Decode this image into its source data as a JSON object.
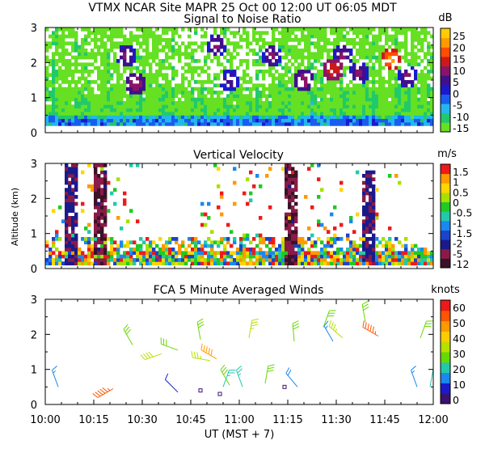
{
  "header": {
    "title": "VTMX  NCAR Site  MAPR 25 Oct 00  12:00 UT  06:05  MDT"
  },
  "colors": {
    "snr": [
      "#66e022",
      "#22c96a",
      "#22b8ee",
      "#1a5cf0",
      "#1a1acc",
      "#40108c",
      "#8a1468",
      "#cc1a1a",
      "#ff4d00",
      "#ff9900",
      "#ffcc00"
    ],
    "vv": [
      "#3a1228",
      "#8a1a48",
      "#1a1a8c",
      "#1a44cc",
      "#1a88ee",
      "#22c9aa",
      "#22c922",
      "#a8e000",
      "#ffd500",
      "#ff9900",
      "#ee1a1a"
    ],
    "wind": [
      "#3a1270",
      "#1a1acc",
      "#1a88ee",
      "#22c9aa",
      "#66d900",
      "#b8e000",
      "#ffcc00",
      "#ff9900",
      "#ff5500",
      "#ee1a1a"
    ]
  },
  "chart_data": [
    {
      "type": "heatmap",
      "title": "Signal to Noise Ratio",
      "xlabel": "",
      "ylabel": "",
      "xlim": [
        0,
        120
      ],
      "ylim": [
        0,
        3
      ],
      "yticks": [
        "0",
        "1",
        "2",
        "3"
      ],
      "colorbar_unit": "dB",
      "colorbar_labels": [
        "25",
        "20",
        "15",
        "10",
        "5",
        "0",
        "-5",
        "-10",
        "-15"
      ],
      "description_values": {
        "low_level_band_km": [
          0.25,
          0.45
        ],
        "enhanced_cells": [
          {
            "t": 25,
            "z": 2.2,
            "db": 10
          },
          {
            "t": 28,
            "z": 1.4,
            "db": 12
          },
          {
            "t": 53,
            "z": 2.5,
            "db": 10
          },
          {
            "t": 57,
            "z": 1.5,
            "db": 8
          },
          {
            "t": 70,
            "z": 2.2,
            "db": 10
          },
          {
            "t": 80,
            "z": 1.5,
            "db": 12
          },
          {
            "t": 89,
            "z": 1.8,
            "db": 15
          },
          {
            "t": 92,
            "z": 2.2,
            "db": 10
          },
          {
            "t": 97,
            "z": 1.7,
            "db": 10
          },
          {
            "t": 107,
            "z": 2.1,
            "db": 20
          },
          {
            "t": 112,
            "z": 1.6,
            "db": 10
          }
        ]
      }
    },
    {
      "type": "heatmap",
      "title": "Vertical Velocity",
      "xlabel": "",
      "ylabel": "Altitude (km)",
      "xlim": [
        0,
        120
      ],
      "ylim": [
        0,
        3
      ],
      "yticks": [
        "0",
        "1",
        "2",
        "3"
      ],
      "colorbar_unit": "m/s",
      "colorbar_labels": [
        "1.5",
        "1",
        "0.5",
        "0",
        "-0.5",
        "-1",
        "-1.5",
        "-2",
        "-5",
        "-12"
      ],
      "description_values": {
        "downdraft_columns": [
          {
            "t": 8,
            "z_top": 3.0,
            "ms": -5
          },
          {
            "t": 17,
            "z_top": 3.0,
            "ms": -12
          },
          {
            "t": 76,
            "z_top": 3.0,
            "ms": -12
          },
          {
            "t": 100,
            "z_top": 2.8,
            "ms": -5
          }
        ]
      }
    },
    {
      "type": "scatter",
      "title": "FCA 5 Minute Averaged Winds",
      "xlabel": "UT  (MST + 7)",
      "ylabel": "",
      "xlim": [
        0,
        120
      ],
      "ylim": [
        0,
        3
      ],
      "yticks": [
        "0",
        "1",
        "2",
        "3"
      ],
      "xticks": [
        "10:00",
        "10:15",
        "10:30",
        "10:45",
        "11:00",
        "11:15",
        "11:30",
        "11:45",
        "12:00"
      ],
      "colorbar_unit": "knots",
      "colorbar_labels": [
        "60",
        "50",
        "40",
        "30",
        "20",
        "10",
        "0"
      ],
      "series": [
        {
          "name": "barbs",
          "points": [
            {
              "t": 27,
              "z": 1.7,
              "speed": 30,
              "dir": 330
            },
            {
              "t": 36,
              "z": 1.45,
              "speed": 38,
              "dir": 250
            },
            {
              "t": 41,
              "z": 1.55,
              "speed": 30,
              "dir": 290
            },
            {
              "t": 48,
              "z": 1.85,
              "speed": 30,
              "dir": 350
            },
            {
              "t": 51,
              "z": 1.25,
              "speed": 35,
              "dir": 280
            },
            {
              "t": 53,
              "z": 1.3,
              "speed": 50,
              "dir": 300
            },
            {
              "t": 63,
              "z": 1.9,
              "speed": 35,
              "dir": 10
            },
            {
              "t": 77,
              "z": 1.8,
              "speed": 32,
              "dir": 355
            },
            {
              "t": 86,
              "z": 2.2,
              "speed": 30,
              "dir": 20
            },
            {
              "t": 89,
              "z": 1.8,
              "speed": 15,
              "dir": 330
            },
            {
              "t": 92,
              "z": 1.9,
              "speed": 35,
              "dir": 310
            },
            {
              "t": 99,
              "z": 2.35,
              "speed": 30,
              "dir": 350
            },
            {
              "t": 103,
              "z": 1.95,
              "speed": 55,
              "dir": 300
            },
            {
              "t": 116,
              "z": 1.9,
              "speed": 30,
              "dir": 20
            },
            {
              "t": 4,
              "z": 0.5,
              "speed": 15,
              "dir": 340
            },
            {
              "t": 21,
              "z": 0.45,
              "speed": 55,
              "dir": 240
            },
            {
              "t": 41,
              "z": 0.35,
              "speed": 12,
              "dir": 315
            },
            {
              "t": 48,
              "z": 0.4,
              "speed": 1,
              "dir": 0
            },
            {
              "t": 54,
              "z": 0.3,
              "speed": 1,
              "dir": 0
            },
            {
              "t": 55,
              "z": 0.5,
              "speed": 25,
              "dir": 20
            },
            {
              "t": 57,
              "z": 0.55,
              "speed": 30,
              "dir": 330
            },
            {
              "t": 61,
              "z": 0.5,
              "speed": 25,
              "dir": 340
            },
            {
              "t": 68,
              "z": 0.6,
              "speed": 30,
              "dir": 10
            },
            {
              "t": 74,
              "z": 0.5,
              "speed": 1,
              "dir": 0
            },
            {
              "t": 78,
              "z": 0.5,
              "speed": 18,
              "dir": 320
            },
            {
              "t": 115,
              "z": 0.5,
              "speed": 15,
              "dir": 340
            },
            {
              "t": 119,
              "z": 0.5,
              "speed": 20,
              "dir": 10
            }
          ]
        }
      ]
    }
  ]
}
